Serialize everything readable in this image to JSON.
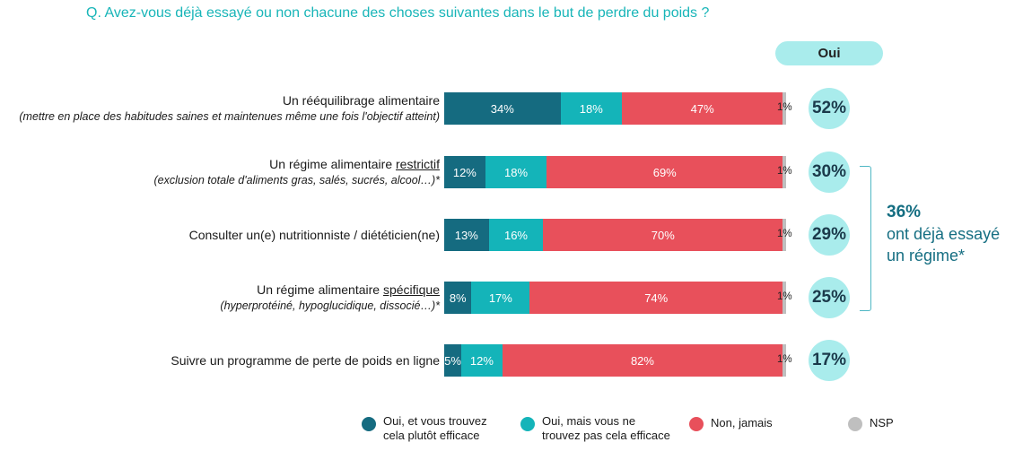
{
  "question": "Q. Avez-vous déjà essayé ou non chacune des choses suivantes dans le but de perdre du poids ?",
  "oui_header": "Oui",
  "colors": {
    "efficace": "#156b80",
    "pas_efficace": "#14b4b9",
    "jamais": "#e8505b",
    "nsp": "#bfbfbf",
    "oui_bubble": "#a9ecec"
  },
  "annotation": {
    "value": "36%",
    "line1": "ont déjà essayé",
    "line2": "un régime*"
  },
  "chart_data": {
    "type": "bar",
    "orientation": "horizontal",
    "stacked": true,
    "categories": [
      "Un rééquilibrage alimentaire",
      "Un régime alimentaire restrictif",
      "Consulter un(e) nutritionniste / diététicien(ne)",
      "Un régime alimentaire spécifique",
      "Suivre un programme de perte de poids en ligne"
    ],
    "rows": [
      {
        "label_pre": "Un rééquilibrage alimentaire",
        "label_u": "",
        "label_post": "",
        "sub": "(mettre en place des habitudes saines et maintenues même une fois l'objectif atteint)",
        "values": [
          34,
          18,
          47,
          1
        ],
        "labels": [
          "34%",
          "18%",
          "47%",
          "1%"
        ],
        "oui": "52%"
      },
      {
        "label_pre": "Un régime alimentaire ",
        "label_u": "restrictif",
        "label_post": "",
        "sub": "(exclusion totale d'aliments gras, salés, sucrés, alcool…)*",
        "values": [
          12,
          18,
          69,
          1
        ],
        "labels": [
          "12%",
          "18%",
          "69%",
          "1%"
        ],
        "oui": "30%"
      },
      {
        "label_pre": "Consulter un(e) nutritionniste / diététicien(ne)",
        "label_u": "",
        "label_post": "",
        "sub": "",
        "values": [
          13,
          16,
          70,
          1
        ],
        "labels": [
          "13%",
          "16%",
          "70%",
          "1%"
        ],
        "oui": "29%"
      },
      {
        "label_pre": "Un régime alimentaire ",
        "label_u": "spécifique",
        "label_post": "",
        "sub": "(hyperprotéiné, hypoglucidique, dissocié…)*",
        "values": [
          8,
          17,
          74,
          1
        ],
        "labels": [
          "8%",
          "17%",
          "74%",
          "1%"
        ],
        "oui": "25%"
      },
      {
        "label_pre": "Suivre un programme de perte de poids en ligne",
        "label_u": "",
        "label_post": "",
        "sub": "",
        "values": [
          5,
          12,
          82,
          1
        ],
        "labels": [
          "5%",
          "12%",
          "82%",
          "1%"
        ],
        "oui": "17%"
      }
    ],
    "series": [
      {
        "name": "Oui, et vous trouvez cela plutôt efficace",
        "values": [
          34,
          12,
          13,
          8,
          5
        ]
      },
      {
        "name": "Oui, mais vous ne trouvez pas cela efficace",
        "values": [
          18,
          18,
          16,
          17,
          12
        ]
      },
      {
        "name": "Non, jamais",
        "values": [
          47,
          69,
          70,
          74,
          82
        ]
      },
      {
        "name": "NSP",
        "values": [
          1,
          1,
          1,
          1,
          1
        ]
      }
    ],
    "legend": [
      {
        "line1": "Oui, et vous trouvez",
        "line2": "cela plutôt efficace"
      },
      {
        "line1": "Oui, mais vous ne",
        "line2": "trouvez pas cela efficace"
      },
      {
        "line1": "Non, jamais",
        "line2": ""
      },
      {
        "line1": "NSP",
        "line2": ""
      }
    ],
    "legend_position": "bottom"
  }
}
